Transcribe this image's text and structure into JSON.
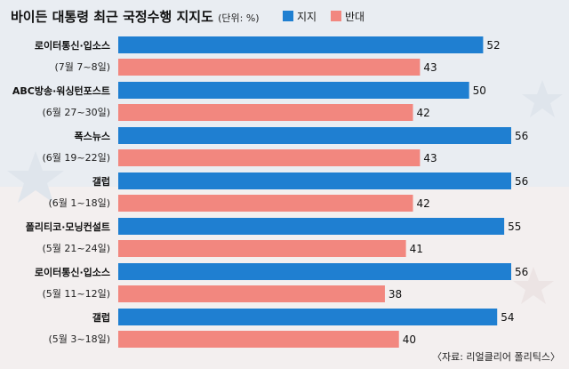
{
  "chart_data": {
    "type": "bar",
    "orientation": "horizontal",
    "title": "바이든 대통령 최근 국정수행 지지도",
    "unit": "(단위: %)",
    "legend_placement": "top-right",
    "categories": [
      {
        "name": "로이터통신·입소스",
        "period": "(7월 7~8일)"
      },
      {
        "name": "ABC방송·워싱턴포스트",
        "period": "(6월 27~30일)"
      },
      {
        "name": "폭스뉴스",
        "period": "(6월 19~22일)"
      },
      {
        "name": "갤럽",
        "period": "(6월 1~18일)"
      },
      {
        "name": "폴리티코·모닝컨설트",
        "period": "(5월 21~24일)"
      },
      {
        "name": "로이터통신·입소스",
        "period": "(5월 11~12일)"
      },
      {
        "name": "갤럽",
        "period": "(5월 3~18일)"
      }
    ],
    "series": [
      {
        "name": "지지",
        "color": "#1f7fd1",
        "values": [
          52,
          50,
          56,
          56,
          55,
          56,
          54
        ]
      },
      {
        "name": "반대",
        "color": "#f2877f",
        "values": [
          43,
          42,
          43,
          42,
          41,
          38,
          40
        ]
      }
    ],
    "xlim": [
      0,
      60
    ],
    "grid": false,
    "source": "〈자료: 리얼클리어 폴리틱스〉"
  }
}
